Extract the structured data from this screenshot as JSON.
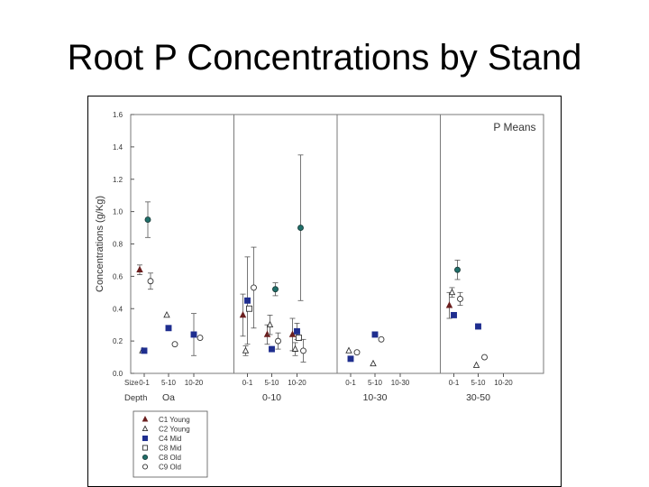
{
  "slide": {
    "title": "Root P Concentrations by Stand"
  },
  "chart_data": {
    "type": "scatter",
    "title": "",
    "annotation": "P Means",
    "ylabel": "Concentrations (g/Kg)",
    "xlabel": "",
    "ylim": [
      0,
      1.6
    ],
    "yticks": [
      "0.0",
      "0.2",
      "0.4",
      "0.6",
      "0.8",
      "1.0",
      "1.2",
      "1.4",
      "1.6"
    ],
    "grid": false,
    "legend_position": "bottom-left",
    "row_labels": {
      "size": "Size",
      "depth": "Depth"
    },
    "panels": [
      {
        "depth": "Oa",
        "sizes": [
          "0-1",
          "5-10",
          "10-20"
        ]
      },
      {
        "depth": "0-10",
        "sizes": [
          "0-1",
          "5-10",
          "10-20"
        ]
      },
      {
        "depth": "10-30",
        "sizes": [
          "0-1",
          "5-10",
          "10-30"
        ]
      },
      {
        "depth": "30-50",
        "sizes": [
          "0-1",
          "5-10",
          "10-20"
        ]
      }
    ],
    "series": [
      {
        "name": "C1 Young",
        "marker": "triangle-filled",
        "color": "#6b1f1f",
        "points": [
          {
            "panel": 0,
            "size": 0,
            "y": 0.64,
            "err": 0.03
          },
          {
            "panel": 1,
            "size": 0,
            "y": 0.36,
            "err": 0.13
          },
          {
            "panel": 1,
            "size": 1,
            "y": 0.24,
            "err": 0.06
          },
          {
            "panel": 1,
            "size": 2,
            "y": 0.24,
            "err": 0.1
          },
          {
            "panel": 3,
            "size": 0,
            "y": 0.42,
            "err": 0.08
          }
        ]
      },
      {
        "name": "C2 Young",
        "marker": "triangle-open",
        "color": "#333333",
        "points": [
          {
            "panel": 0,
            "size": 0,
            "y": 0.14,
            "err": null
          },
          {
            "panel": 0,
            "size": 1,
            "y": 0.36,
            "err": null
          },
          {
            "panel": 1,
            "size": 0,
            "y": 0.14,
            "err": 0.03
          },
          {
            "panel": 1,
            "size": 1,
            "y": 0.3,
            "err": 0.06
          },
          {
            "panel": 1,
            "size": 2,
            "y": 0.15,
            "err": 0.04
          },
          {
            "panel": 2,
            "size": 0,
            "y": 0.14,
            "err": null
          },
          {
            "panel": 2,
            "size": 1,
            "y": 0.06,
            "err": null
          },
          {
            "panel": 3,
            "size": 0,
            "y": 0.5,
            "err": 0.03
          },
          {
            "panel": 3,
            "size": 1,
            "y": 0.05,
            "err": null
          }
        ]
      },
      {
        "name": "C4 Mid",
        "marker": "square-filled",
        "color": "#1f2e8f",
        "points": [
          {
            "panel": 0,
            "size": 0,
            "y": 0.14,
            "err": null
          },
          {
            "panel": 0,
            "size": 1,
            "y": 0.28,
            "err": null
          },
          {
            "panel": 0,
            "size": 2,
            "y": 0.24,
            "err": 0.13
          },
          {
            "panel": 1,
            "size": 0,
            "y": 0.45,
            "err": 0.27
          },
          {
            "panel": 1,
            "size": 1,
            "y": 0.15,
            "err": null
          },
          {
            "panel": 1,
            "size": 2,
            "y": 0.26,
            "err": 0.05
          },
          {
            "panel": 2,
            "size": 0,
            "y": 0.09,
            "err": null
          },
          {
            "panel": 2,
            "size": 1,
            "y": 0.24,
            "err": null
          },
          {
            "panel": 3,
            "size": 0,
            "y": 0.36,
            "err": null
          },
          {
            "panel": 3,
            "size": 1,
            "y": 0.29,
            "err": null
          }
        ]
      },
      {
        "name": "C8 Mid",
        "marker": "square-open",
        "color": "#333333",
        "points": [
          {
            "panel": 1,
            "size": 0,
            "y": 0.4,
            "err": null
          },
          {
            "panel": 1,
            "size": 2,
            "y": 0.22,
            "err": null
          }
        ]
      },
      {
        "name": "C8 Old",
        "marker": "circle-filled",
        "color": "#1f6f6a",
        "points": [
          {
            "panel": 0,
            "size": 0,
            "y": 0.95,
            "err": 0.11
          },
          {
            "panel": 1,
            "size": 1,
            "y": 0.52,
            "err": 0.04
          },
          {
            "panel": 1,
            "size": 2,
            "y": 0.9,
            "err": 0.45
          },
          {
            "panel": 3,
            "size": 0,
            "y": 0.64,
            "err": 0.06
          }
        ]
      },
      {
        "name": "C9 Old",
        "marker": "circle-open",
        "color": "#333333",
        "points": [
          {
            "panel": 0,
            "size": 0,
            "y": 0.57,
            "err": 0.05
          },
          {
            "panel": 0,
            "size": 1,
            "y": 0.18,
            "err": null
          },
          {
            "panel": 0,
            "size": 2,
            "y": 0.22,
            "err": null
          },
          {
            "panel": 1,
            "size": 0,
            "y": 0.53,
            "err": 0.25
          },
          {
            "panel": 1,
            "size": 1,
            "y": 0.2,
            "err": 0.05
          },
          {
            "panel": 1,
            "size": 2,
            "y": 0.14,
            "err": 0.07
          },
          {
            "panel": 2,
            "size": 0,
            "y": 0.13,
            "err": null
          },
          {
            "panel": 2,
            "size": 1,
            "y": 0.21,
            "err": null
          },
          {
            "panel": 3,
            "size": 0,
            "y": 0.46,
            "err": 0.04
          },
          {
            "panel": 3,
            "size": 1,
            "y": 0.1,
            "err": null
          }
        ]
      }
    ]
  }
}
